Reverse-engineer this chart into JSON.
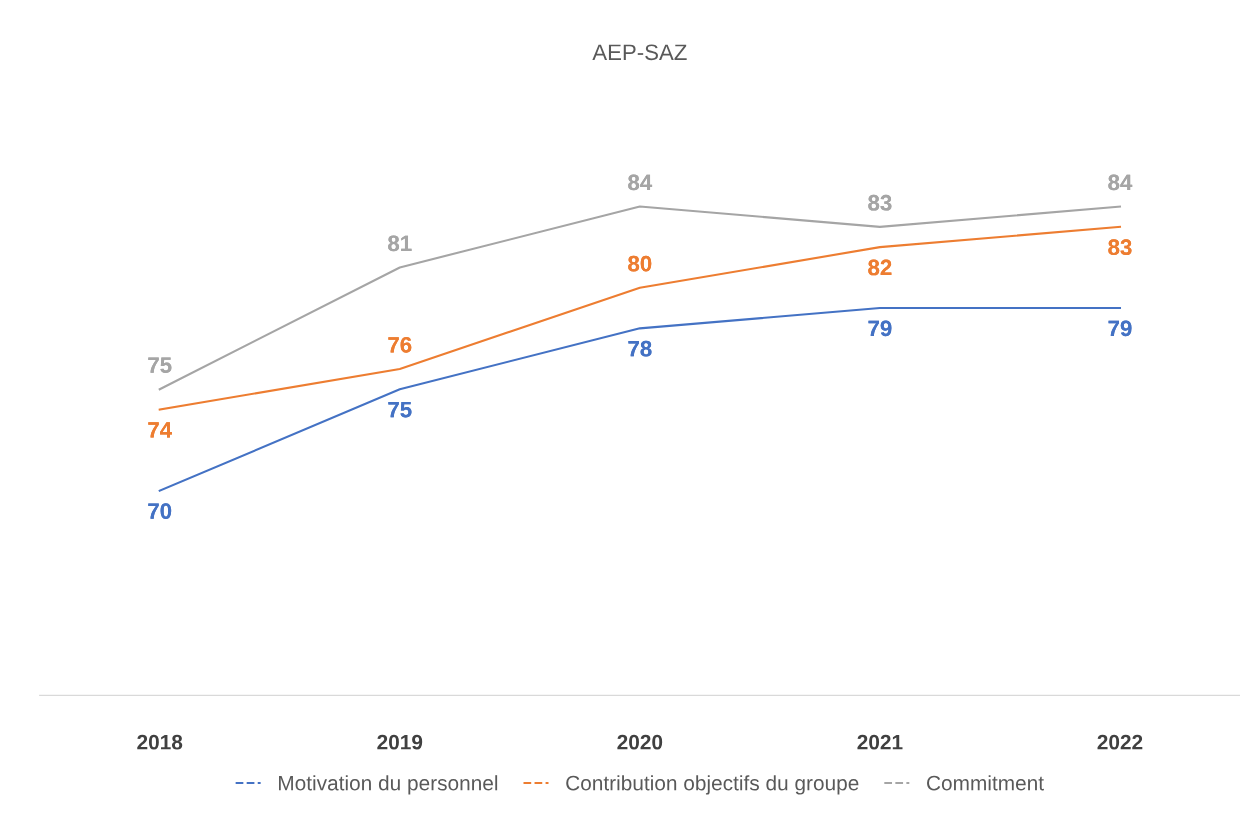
{
  "chart_data": {
    "type": "line",
    "title": "AEP-SAZ",
    "categories": [
      "2018",
      "2019",
      "2020",
      "2021",
      "2022"
    ],
    "series": [
      {
        "name": "Motivation du personnel",
        "color": "#4472c4",
        "values": [
          70,
          75,
          78,
          79,
          79
        ]
      },
      {
        "name": "Contribution objectifs du groupe",
        "color": "#ed7d31",
        "values": [
          74,
          76,
          80,
          82,
          83
        ]
      },
      {
        "name": "Commitment",
        "color": "#a5a5a5",
        "values": [
          75,
          81,
          84,
          83,
          84
        ]
      }
    ],
    "tick_labels": "x",
    "data_labels": true,
    "legend": "bottom",
    "marker": "none",
    "line_style": "solid"
  }
}
